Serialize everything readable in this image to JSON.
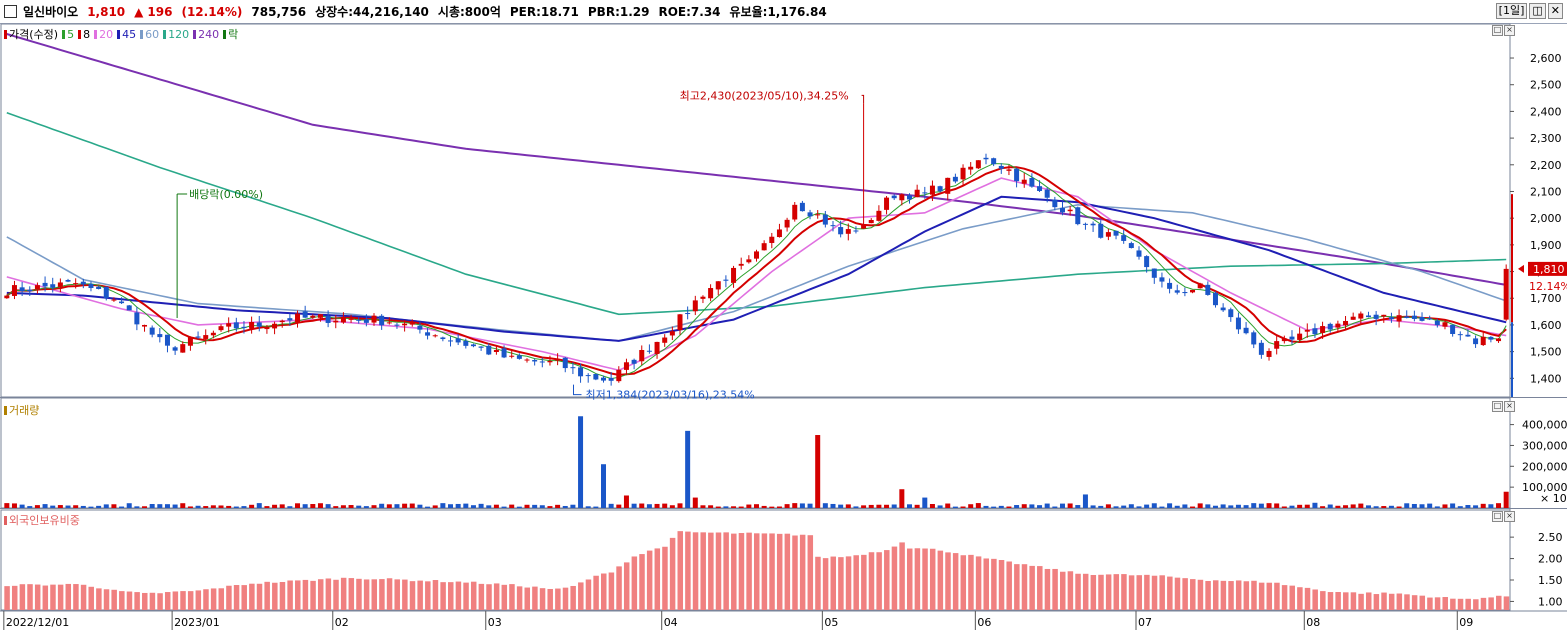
{
  "header": {
    "name": "일신바이오",
    "price": "1,810",
    "arrow": "▲",
    "change": "196",
    "change_pct": "(12.14%)",
    "volume": "785,756",
    "shares": "상장수:44,216,140",
    "mktcap": "시총:800억",
    "per": "PER:18.71",
    "pbr": "PBR:1.29",
    "roe": "ROE:7.34",
    "reserve": "유보율:1,176.84",
    "period": "[1일]",
    "colors": {
      "up": "#d40000",
      "down": "#1a56c8"
    }
  },
  "price_legend": [
    {
      "label": "가격(수정)",
      "color": "#d40000"
    },
    {
      "label": "5",
      "color": "#2ca02c"
    },
    {
      "label": "8",
      "color": "#d40000"
    },
    {
      "label": "20",
      "color": "#e070e0"
    },
    {
      "label": "45",
      "color": "#1f1fb4"
    },
    {
      "label": "60",
      "color": "#7a9cc8"
    },
    {
      "label": "120",
      "color": "#2aa88a"
    },
    {
      "label": "240",
      "color": "#7a30b0"
    },
    {
      "label": "락",
      "color": "#117711"
    }
  ],
  "volume_legend": {
    "label": "거래량",
    "color": "#b08000"
  },
  "foreign_legend": {
    "label": "외국인보유비중",
    "color": "#e06060"
  },
  "annotations": {
    "high": "최고2,430(2023/05/10),34.25%",
    "low": "최저1,384(2023/03/16),23.54%",
    "dividend": "배당락(0.00%)"
  },
  "current": {
    "price_label": "1,810",
    "pct_label": "12.14%",
    "price": 1810
  },
  "chart_data": [
    {
      "type": "candlestick",
      "title": "가격(수정)",
      "ylim": [
        1330,
        2690
      ],
      "y_ticks": [
        "2,600",
        "2,500",
        "2,400",
        "2,300",
        "2,200",
        "2,100",
        "2,000",
        "1,900",
        "1,800",
        "1,700",
        "1,600",
        "1,500",
        "1,400"
      ],
      "y_tick_values": [
        2600,
        2500,
        2400,
        2300,
        2200,
        2100,
        2000,
        1900,
        1800,
        1700,
        1600,
        1500,
        1400
      ],
      "x_labels": [
        "2022/12/01",
        "2023/01",
        "02",
        "03",
        "04",
        "05",
        "06",
        "07",
        "08",
        "09"
      ],
      "x_label_index": [
        0,
        22,
        43,
        63,
        86,
        107,
        127,
        148,
        170,
        190
      ],
      "n_bars": 197,
      "anchors": [
        [
          0,
          1730
        ],
        [
          4,
          1740
        ],
        [
          9,
          1755
        ],
        [
          14,
          1700
        ],
        [
          17,
          1620
        ],
        [
          21,
          1510
        ],
        [
          25,
          1545
        ],
        [
          29,
          1590
        ],
        [
          33,
          1600
        ],
        [
          37,
          1625
        ],
        [
          44,
          1625
        ],
        [
          50,
          1615
        ],
        [
          56,
          1565
        ],
        [
          62,
          1510
        ],
        [
          66,
          1470
        ],
        [
          72,
          1455
        ],
        [
          76,
          1405
        ],
        [
          79,
          1395
        ],
        [
          82,
          1470
        ],
        [
          85,
          1540
        ],
        [
          88,
          1620
        ],
        [
          91,
          1720
        ],
        [
          94,
          1780
        ],
        [
          97,
          1830
        ],
        [
          100,
          1920
        ],
        [
          103,
          2060
        ],
        [
          106,
          2010
        ],
        [
          109,
          1940
        ],
        [
          112,
          1975
        ],
        [
          116,
          2090
        ],
        [
          120,
          2090
        ],
        [
          124,
          2150
        ],
        [
          128,
          2230
        ],
        [
          131,
          2180
        ],
        [
          134,
          2110
        ],
        [
          137,
          2060
        ],
        [
          141,
          1970
        ],
        [
          145,
          1920
        ],
        [
          149,
          1820
        ],
        [
          152,
          1720
        ],
        [
          156,
          1740
        ],
        [
          160,
          1620
        ],
        [
          164,
          1500
        ],
        [
          168,
          1540
        ],
        [
          172,
          1590
        ],
        [
          176,
          1620
        ],
        [
          180,
          1640
        ],
        [
          184,
          1620
        ],
        [
          188,
          1600
        ],
        [
          192,
          1540
        ],
        [
          195,
          1560
        ],
        [
          196,
          1810
        ]
      ],
      "high": {
        "value": 2430,
        "index": 112
      },
      "low": {
        "value": 1384,
        "index": 78
      },
      "ma_lines": [
        {
          "period": 240,
          "color": "#7a30b0",
          "points": [
            [
              0,
              2690
            ],
            [
              20,
              2520
            ],
            [
              40,
              2350
            ],
            [
              60,
              2260
            ],
            [
              80,
              2200
            ],
            [
              100,
              2140
            ],
            [
              120,
              2080
            ],
            [
              140,
              2010
            ],
            [
              160,
              1920
            ],
            [
              180,
              1830
            ],
            [
              196,
              1750
            ]
          ]
        },
        {
          "period": 120,
          "color": "#2aa88a",
          "points": [
            [
              0,
              2395
            ],
            [
              20,
              2190
            ],
            [
              40,
              2000
            ],
            [
              60,
              1790
            ],
            [
              80,
              1640
            ],
            [
              100,
              1670
            ],
            [
              120,
              1740
            ],
            [
              140,
              1790
            ],
            [
              160,
              1820
            ],
            [
              180,
              1830
            ],
            [
              196,
              1845
            ]
          ]
        },
        {
          "period": 60,
          "color": "#7a9cc8",
          "points": [
            [
              0,
              1930
            ],
            [
              10,
              1770
            ],
            [
              25,
              1680
            ],
            [
              45,
              1640
            ],
            [
              65,
              1580
            ],
            [
              80,
              1540
            ],
            [
              95,
              1650
            ],
            [
              110,
              1820
            ],
            [
              125,
              1960
            ],
            [
              140,
              2050
            ],
            [
              155,
              2020
            ],
            [
              170,
              1920
            ],
            [
              185,
              1800
            ],
            [
              196,
              1690
            ]
          ]
        },
        {
          "period": 45,
          "color": "#1f1fb4",
          "points": [
            [
              0,
              1720
            ],
            [
              10,
              1710
            ],
            [
              30,
              1655
            ],
            [
              50,
              1625
            ],
            [
              65,
              1575
            ],
            [
              80,
              1540
            ],
            [
              95,
              1620
            ],
            [
              110,
              1790
            ],
            [
              120,
              1950
            ],
            [
              130,
              2080
            ],
            [
              140,
              2060
            ],
            [
              150,
              2000
            ],
            [
              165,
              1880
            ],
            [
              180,
              1720
            ],
            [
              196,
              1610
            ]
          ]
        },
        {
          "period": 20,
          "color": "#e070e0",
          "points": [
            [
              0,
              1780
            ],
            [
              15,
              1660
            ],
            [
              25,
              1600
            ],
            [
              40,
              1620
            ],
            [
              55,
              1585
            ],
            [
              70,
              1500
            ],
            [
              80,
              1430
            ],
            [
              90,
              1560
            ],
            [
              100,
              1800
            ],
            [
              110,
              2000
            ],
            [
              120,
              2020
            ],
            [
              130,
              2150
            ],
            [
              140,
              2080
            ],
            [
              150,
              1880
            ],
            [
              160,
              1720
            ],
            [
              170,
              1580
            ],
            [
              180,
              1620
            ],
            [
              190,
              1590
            ],
            [
              196,
              1560
            ]
          ]
        }
      ]
    },
    {
      "type": "bar",
      "title": "거래량",
      "ylim": [
        0,
        470000
      ],
      "y_ticks": [
        "400,000",
        "300,000",
        "200,000",
        "100,000"
      ],
      "y_tick_values": [
        400000,
        300000,
        200000,
        100000
      ],
      "unit_label": "× 10",
      "base_volume": 16000,
      "spikes": [
        [
          75,
          440000
        ],
        [
          78,
          210000
        ],
        [
          81,
          60000
        ],
        [
          89,
          370000
        ],
        [
          90,
          50000
        ],
        [
          106,
          350000
        ],
        [
          117,
          90000
        ],
        [
          120,
          50000
        ],
        [
          141,
          65000
        ],
        [
          171,
          25000
        ],
        [
          196,
          78000
        ]
      ]
    },
    {
      "type": "bar",
      "title": "외국인보유비중",
      "ylim": [
        0.8,
        2.9
      ],
      "y_ticks": [
        "2.50",
        "2.00",
        "1.50",
        "1.00"
      ],
      "y_tick_values": [
        2.5,
        2.0,
        1.5,
        1.0
      ],
      "anchors": [
        [
          0,
          1.38
        ],
        [
          10,
          1.4
        ],
        [
          14,
          1.25
        ],
        [
          18,
          1.18
        ],
        [
          25,
          1.25
        ],
        [
          32,
          1.42
        ],
        [
          45,
          1.55
        ],
        [
          60,
          1.45
        ],
        [
          66,
          1.38
        ],
        [
          72,
          1.28
        ],
        [
          74,
          1.35
        ],
        [
          76,
          1.52
        ],
        [
          79,
          1.7
        ],
        [
          82,
          2.05
        ],
        [
          86,
          2.3
        ],
        [
          88,
          2.62
        ],
        [
          105,
          2.55
        ],
        [
          106,
          2.02
        ],
        [
          110,
          2.05
        ],
        [
          115,
          2.2
        ],
        [
          117,
          2.4
        ],
        [
          118,
          2.25
        ],
        [
          122,
          2.2
        ],
        [
          128,
          2.0
        ],
        [
          135,
          1.8
        ],
        [
          140,
          1.65
        ],
        [
          150,
          1.6
        ],
        [
          157,
          1.5
        ],
        [
          165,
          1.45
        ],
        [
          172,
          1.25
        ],
        [
          176,
          1.2
        ],
        [
          182,
          1.18
        ],
        [
          190,
          1.05
        ],
        [
          196,
          1.12
        ]
      ]
    }
  ]
}
